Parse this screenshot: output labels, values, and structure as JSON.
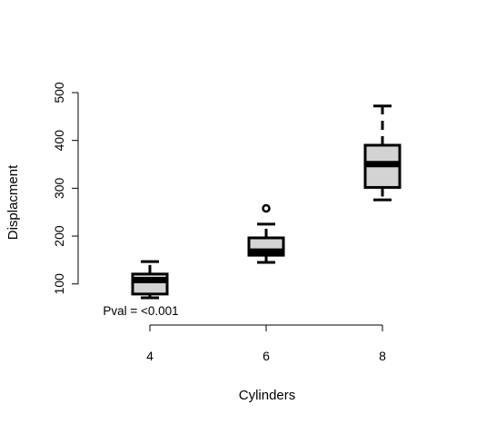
{
  "chart_data": {
    "type": "boxplot",
    "xlabel": "Cylinders",
    "ylabel": "Displacment",
    "categories": [
      "4",
      "6",
      "8"
    ],
    "boxes": [
      {
        "category": "4",
        "whisker_low": 71.1,
        "q1": 78.85,
        "median": 108.0,
        "q3": 120.65,
        "whisker_high": 146.7,
        "outliers": []
      },
      {
        "category": "6",
        "whisker_low": 145.0,
        "q1": 160.0,
        "median": 167.6,
        "q3": 196.3,
        "whisker_high": 225.0,
        "outliers": [
          258.0
        ]
      },
      {
        "category": "8",
        "whisker_low": 275.8,
        "q1": 301.75,
        "median": 350.5,
        "q3": 390.0,
        "whisker_high": 472.0,
        "outliers": []
      }
    ],
    "y_ticks": [
      100,
      200,
      300,
      400,
      500
    ],
    "ylim": [
      71,
      500
    ],
    "box_fill": "#d3d3d3",
    "annotation": "Pval = <0.001"
  }
}
